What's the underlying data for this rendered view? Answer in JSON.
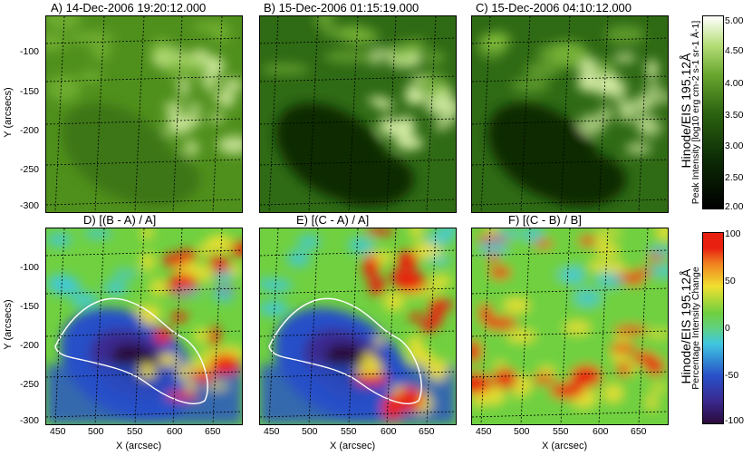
{
  "panels": [
    {
      "title": "A) 14-Dec-2006 19:20:12.000",
      "kind": "intensity",
      "shade": "mid"
    },
    {
      "title": "B) 15-Dec-2006 01:15:19.000",
      "kind": "intensity",
      "shade": "dark"
    },
    {
      "title": "C) 15-Dec-2006 04:10:12.000",
      "kind": "intensity",
      "shade": "dark"
    },
    {
      "title": "D) [(B - A) / A]",
      "kind": "difference",
      "contour": true
    },
    {
      "title": "E) [(C - A) / A]",
      "kind": "difference",
      "contour": true
    },
    {
      "title": "F) [(C - B) / B]",
      "kind": "difference",
      "contour": false
    }
  ],
  "axes": {
    "xlabel": "X (arcsec)",
    "ylabel": "Y (arcsecs)",
    "xticks": [
      "450",
      "500",
      "550",
      "600",
      "650"
    ],
    "yticks": [
      "-100",
      "-150",
      "-200",
      "-250",
      "-300"
    ]
  },
  "colorbars": {
    "intensity": {
      "title": "Hinode/EIS 195.12Å",
      "label": "Peak Intensity [log10 erg cm-2 s-1 sr-1 Å-1]",
      "ticks": [
        "5.00",
        "4.50",
        "4.00",
        "3.50",
        "3.00",
        "2.50",
        "2.00"
      ],
      "range": [
        2.0,
        5.0
      ]
    },
    "difference": {
      "title": "Hinode/EIS 195.12Å",
      "label": "Percentage Intensity Change",
      "ticks": [
        "100",
        "50",
        "0",
        "-50",
        "-100"
      ],
      "range": [
        -100,
        100
      ]
    }
  },
  "colors": {
    "green_dark": "#0b2a05",
    "green_mid": "#4f8f1c",
    "green_light": "#d9f0a8",
    "diff_low": "#2a0a3a",
    "diff_blue": "#2850c8",
    "diff_cyan": "#40c8e0",
    "diff_green": "#70d040",
    "diff_yellow": "#f0e030",
    "diff_red": "#e82010"
  }
}
